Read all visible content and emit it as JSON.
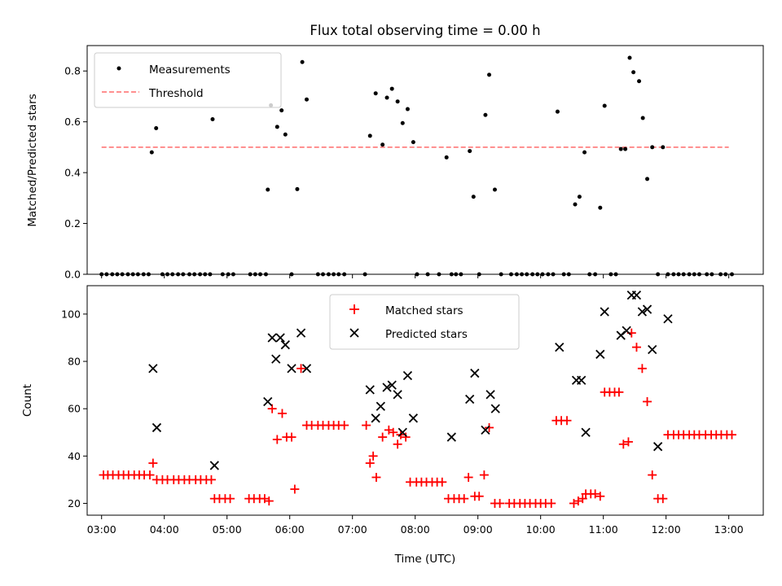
{
  "chart_data": [
    {
      "type": "scatter",
      "title": "Flux total observing time = 0.00 h",
      "xlabel": "",
      "ylabel": "Matched/Predicted stars",
      "ylim": [
        0,
        0.9
      ],
      "yticks": [
        "0.0",
        "0.2",
        "0.4",
        "0.6",
        "0.8"
      ],
      "xlim": [
        2.77,
        13.55
      ],
      "legend": {
        "position": "top-left"
      },
      "series": [
        {
          "name": "Measurements",
          "marker": "dot",
          "color": "#000000",
          "x": [
            3.0,
            3.08,
            3.17,
            3.25,
            3.33,
            3.42,
            3.5,
            3.58,
            3.67,
            3.75,
            3.8,
            3.87,
            3.97,
            4.05,
            4.13,
            4.22,
            4.3,
            4.4,
            4.48,
            4.57,
            4.65,
            4.73,
            4.77,
            4.93,
            5.02,
            5.1,
            5.37,
            5.45,
            5.53,
            5.62,
            5.65,
            5.7,
            5.8,
            5.87,
            5.93,
            6.03,
            6.12,
            6.2,
            6.27,
            6.45,
            6.53,
            6.62,
            6.7,
            6.78,
            6.87,
            7.2,
            7.28,
            7.37,
            7.48,
            7.55,
            7.63,
            7.72,
            7.8,
            7.88,
            7.97,
            8.03,
            8.2,
            8.38,
            8.5,
            8.58,
            8.65,
            8.73,
            8.87,
            8.93,
            9.02,
            9.12,
            9.18,
            9.27,
            9.37,
            9.53,
            9.62,
            9.7,
            9.78,
            9.87,
            9.95,
            10.03,
            10.12,
            10.2,
            10.27,
            10.37,
            10.45,
            10.55,
            10.62,
            10.7,
            10.78,
            10.87,
            10.95,
            11.02,
            11.12,
            11.2,
            11.28,
            11.35,
            11.42,
            11.48,
            11.57,
            11.63,
            11.7,
            11.78,
            11.87,
            11.95,
            12.03,
            12.12,
            12.2,
            12.28,
            12.37,
            12.45,
            12.53,
            12.65,
            12.73,
            12.87,
            12.95,
            13.05
          ],
          "y": [
            0,
            0,
            0,
            0,
            0,
            0,
            0,
            0,
            0,
            0,
            0.48,
            0.575,
            0,
            0,
            0,
            0,
            0,
            0,
            0,
            0,
            0,
            0,
            0.61,
            0,
            0,
            0,
            0,
            0,
            0,
            0,
            0.333,
            0.665,
            0.58,
            0.645,
            0.55,
            0,
            0.335,
            0.835,
            0.688,
            0,
            0,
            0,
            0,
            0,
            0,
            0,
            0.545,
            0.712,
            0.51,
            0.695,
            0.73,
            0.68,
            0.595,
            0.65,
            0.52,
            0,
            0,
            0,
            0.46,
            0,
            0,
            0,
            0.485,
            0.305,
            0,
            0.627,
            0.785,
            0.333,
            0,
            0,
            0,
            0,
            0,
            0,
            0,
            0,
            0,
            0,
            0.64,
            0,
            0,
            0.275,
            0.305,
            0.48,
            0,
            0,
            0.262,
            0.663,
            0,
            0,
            0.493,
            0.493,
            0.852,
            0.795,
            0.76,
            0.615,
            0.375,
            0.5,
            0,
            0.5,
            0,
            0,
            0,
            0,
            0,
            0,
            0,
            0,
            0,
            0,
            0,
            0
          ]
        },
        {
          "name": "Threshold",
          "marker": "dashed-line",
          "color": "#ff8080",
          "x": [
            3.0,
            13.0
          ],
          "y": [
            0.5,
            0.5
          ]
        }
      ]
    },
    {
      "type": "scatter",
      "title": "",
      "xlabel": "Time (UTC)",
      "ylabel": "Count",
      "ylim": [
        15,
        112
      ],
      "yticks": [
        "20",
        "40",
        "60",
        "80",
        "100"
      ],
      "xlim": [
        2.77,
        13.55
      ],
      "xticks": [
        3,
        4,
        5,
        6,
        7,
        8,
        9,
        10,
        11,
        12,
        13
      ],
      "xtick_labels": [
        "03:00",
        "04:00",
        "05:00",
        "06:00",
        "07:00",
        "08:00",
        "09:00",
        "10:00",
        "11:00",
        "12:00",
        "13:00"
      ],
      "legend": {
        "position": "top-center"
      },
      "series": [
        {
          "name": "Matched stars",
          "marker": "plus",
          "color": "#ff0000",
          "x": [
            3.03,
            3.1,
            3.18,
            3.27,
            3.35,
            3.43,
            3.52,
            3.6,
            3.68,
            3.77,
            3.82,
            3.88,
            3.97,
            4.05,
            4.15,
            4.23,
            4.32,
            4.4,
            4.5,
            4.58,
            4.67,
            4.75,
            4.8,
            4.88,
            4.97,
            5.05,
            5.35,
            5.43,
            5.52,
            5.6,
            5.67,
            5.72,
            5.8,
            5.88,
            5.95,
            6.03,
            6.08,
            6.18,
            6.27,
            6.35,
            6.45,
            6.53,
            6.62,
            6.7,
            6.78,
            6.87,
            7.22,
            7.28,
            7.33,
            7.38,
            7.48,
            7.58,
            7.65,
            7.72,
            7.77,
            7.85,
            7.92,
            8.02,
            8.1,
            8.18,
            8.27,
            8.35,
            8.43,
            8.53,
            8.62,
            8.7,
            8.78,
            8.85,
            8.95,
            9.02,
            9.1,
            9.18,
            9.27,
            9.35,
            9.5,
            9.58,
            9.67,
            9.75,
            9.83,
            9.92,
            10.0,
            10.08,
            10.17,
            10.25,
            10.33,
            10.42,
            10.53,
            10.6,
            10.67,
            10.72,
            10.8,
            10.87,
            10.95,
            11.02,
            11.1,
            11.18,
            11.25,
            11.32,
            11.4,
            11.45,
            11.53,
            11.62,
            11.7,
            11.78,
            11.87,
            11.95,
            12.03,
            12.12,
            12.2,
            12.28,
            12.37,
            12.45,
            12.53,
            12.63,
            12.72,
            12.8,
            12.88,
            12.97,
            13.05
          ],
          "y": [
            32,
            32,
            32,
            32,
            32,
            32,
            32,
            32,
            32,
            32,
            37,
            30,
            30,
            30,
            30,
            30,
            30,
            30,
            30,
            30,
            30,
            30,
            22,
            22,
            22,
            22,
            22,
            22,
            22,
            22,
            21,
            60,
            47,
            58,
            48,
            48,
            26,
            77,
            53,
            53,
            53,
            53,
            53,
            53,
            53,
            53,
            53,
            37,
            40,
            31,
            48,
            51,
            50,
            45,
            49,
            48,
            29,
            29,
            29,
            29,
            29,
            29,
            29,
            22,
            22,
            22,
            22,
            31,
            23,
            23,
            32,
            52,
            20,
            20,
            20,
            20,
            20,
            20,
            20,
            20,
            20,
            20,
            20,
            55,
            55,
            55,
            20,
            21,
            22,
            24,
            24,
            24,
            23,
            67,
            67,
            67,
            67,
            45,
            46,
            92,
            86,
            77,
            63,
            32,
            22,
            22,
            49,
            49,
            49,
            49,
            49,
            49,
            49,
            49,
            49,
            49,
            49,
            49,
            49
          ]
        },
        {
          "name": "Predicted stars",
          "marker": "x",
          "color": "#000000",
          "x": [
            3.82,
            3.88,
            4.8,
            5.65,
            5.72,
            5.78,
            5.85,
            5.93,
            6.03,
            6.18,
            6.27,
            7.28,
            7.37,
            7.45,
            7.55,
            7.63,
            7.72,
            7.8,
            7.88,
            7.97,
            8.58,
            8.87,
            8.95,
            9.12,
            9.2,
            9.28,
            10.3,
            10.57,
            10.65,
            10.72,
            10.95,
            11.02,
            11.28,
            11.37,
            11.45,
            11.53,
            11.62,
            11.7,
            11.78,
            11.87,
            12.03
          ],
          "y": [
            77,
            52,
            36,
            63,
            90,
            81,
            90,
            87,
            77,
            92,
            77,
            68,
            56,
            61,
            69,
            70,
            66,
            50,
            74,
            56,
            48,
            64,
            75,
            51,
            66,
            60,
            86,
            72,
            72,
            50,
            83,
            101,
            91,
            93,
            108,
            108,
            101,
            102,
            85,
            44,
            98
          ]
        }
      ]
    }
  ]
}
